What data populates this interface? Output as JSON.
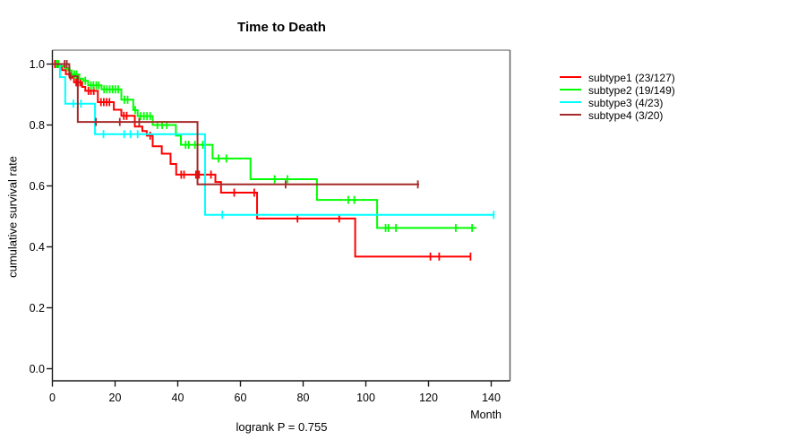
{
  "title": "Time to Death",
  "footer": "logrank P = 0.755",
  "axes": {
    "x": {
      "label": "Month",
      "ticks": [
        "0",
        "20",
        "40",
        "60",
        "80",
        "100",
        "120",
        "140"
      ],
      "min": 0,
      "max": 140
    },
    "y": {
      "label": "cumulative survival rate",
      "ticks": [
        "0.0",
        "0.2",
        "0.4",
        "0.6",
        "0.8",
        "1.0"
      ],
      "min": 0,
      "max": 1
    }
  },
  "legend": {
    "position": "right",
    "items": [
      {
        "label": "subtype1 (23/127)",
        "color": "#ff0000"
      },
      {
        "label": "subtype2 (19/149)",
        "color": "#00ff00"
      },
      {
        "label": "subtype3 (4/23)",
        "color": "#00ffff"
      },
      {
        "label": "subtype4 (3/20)",
        "color": "#a52a2a"
      }
    ]
  },
  "chart_data": {
    "type": "line",
    "variant": "kaplan-meier-step",
    "title": "Time to Death",
    "xlabel": "Month",
    "ylabel": "cumulative survival rate",
    "annotation": "logrank P = 0.755",
    "xlim": [
      0,
      140
    ],
    "ylim": [
      0,
      1
    ],
    "grid": false,
    "legend_position": "right",
    "series": [
      {
        "name": "subtype1 (23/127)",
        "color": "#ff0000",
        "events_total": "23/127",
        "steps": [
          [
            0,
            1.0
          ],
          [
            1.9,
            0.99
          ],
          [
            3.1,
            0.98
          ],
          [
            4.3,
            0.967
          ],
          [
            5.5,
            0.955
          ],
          [
            6.9,
            0.94
          ],
          [
            9.5,
            0.925
          ],
          [
            10.5,
            0.912
          ],
          [
            14.5,
            0.875
          ],
          [
            19.6,
            0.85
          ],
          [
            22,
            0.83
          ],
          [
            26.3,
            0.795
          ],
          [
            28.7,
            0.78
          ],
          [
            30.1,
            0.765
          ],
          [
            32,
            0.73
          ],
          [
            34.9,
            0.706
          ],
          [
            37.7,
            0.672
          ],
          [
            39.5,
            0.637
          ],
          [
            52,
            0.613
          ],
          [
            53.8,
            0.578
          ],
          [
            65.3,
            0.493
          ],
          [
            96.6,
            0.368
          ]
        ],
        "end": 133.5,
        "censors": [
          [
            0.8,
            1.0
          ],
          [
            1.4,
            1.0
          ],
          [
            2.4,
            0.99
          ],
          [
            7.6,
            0.94
          ],
          [
            8.3,
            0.94
          ],
          [
            9.0,
            0.94
          ],
          [
            11.5,
            0.912
          ],
          [
            12.3,
            0.912
          ],
          [
            13.2,
            0.912
          ],
          [
            15.5,
            0.875
          ],
          [
            16.4,
            0.875
          ],
          [
            17.3,
            0.875
          ],
          [
            18.2,
            0.875
          ],
          [
            22.8,
            0.83
          ],
          [
            23.7,
            0.83
          ],
          [
            31.2,
            0.765
          ],
          [
            41.1,
            0.637
          ],
          [
            42.0,
            0.637
          ],
          [
            45.8,
            0.637
          ],
          [
            46.8,
            0.637
          ],
          [
            50.6,
            0.637
          ],
          [
            58.0,
            0.578
          ],
          [
            64.4,
            0.578
          ],
          [
            78.2,
            0.493
          ],
          [
            91.5,
            0.493
          ],
          [
            120.6,
            0.368
          ],
          [
            123.4,
            0.368
          ],
          [
            133.4,
            0.368
          ]
        ]
      },
      {
        "name": "subtype2 (19/149)",
        "color": "#00ff00",
        "events_total": "19/149",
        "steps": [
          [
            0,
            1.0
          ],
          [
            2.7,
            0.993
          ],
          [
            4.0,
            0.986
          ],
          [
            4.9,
            0.979
          ],
          [
            6.2,
            0.966
          ],
          [
            8.6,
            0.952
          ],
          [
            9.8,
            0.945
          ],
          [
            11.4,
            0.93
          ],
          [
            15.7,
            0.917
          ],
          [
            22,
            0.883
          ],
          [
            25.8,
            0.849
          ],
          [
            27.2,
            0.829
          ],
          [
            32,
            0.8
          ],
          [
            39.4,
            0.765
          ],
          [
            41,
            0.735
          ],
          [
            51.1,
            0.69
          ],
          [
            63.2,
            0.622
          ],
          [
            84.4,
            0.554
          ],
          [
            103.6,
            0.462
          ]
        ],
        "end": 135.3,
        "censors": [
          [
            1.3,
            1.0
          ],
          [
            2.0,
            1.0
          ],
          [
            5.5,
            0.979
          ],
          [
            7.0,
            0.966
          ],
          [
            7.7,
            0.966
          ],
          [
            10.5,
            0.945
          ],
          [
            12.3,
            0.93
          ],
          [
            13.1,
            0.93
          ],
          [
            14.0,
            0.93
          ],
          [
            14.8,
            0.93
          ],
          [
            16.5,
            0.917
          ],
          [
            17.4,
            0.917
          ],
          [
            18.3,
            0.917
          ],
          [
            19.2,
            0.917
          ],
          [
            20.1,
            0.917
          ],
          [
            21.0,
            0.917
          ],
          [
            23.0,
            0.883
          ],
          [
            24.0,
            0.883
          ],
          [
            26.4,
            0.849
          ],
          [
            28.2,
            0.829
          ],
          [
            29.2,
            0.829
          ],
          [
            30.2,
            0.829
          ],
          [
            31.2,
            0.829
          ],
          [
            33.5,
            0.8
          ],
          [
            35.0,
            0.8
          ],
          [
            36.5,
            0.8
          ],
          [
            42.5,
            0.735
          ],
          [
            43.5,
            0.735
          ],
          [
            45.5,
            0.735
          ],
          [
            48.0,
            0.735
          ],
          [
            53.0,
            0.69
          ],
          [
            55.5,
            0.69
          ],
          [
            70.9,
            0.622
          ],
          [
            75.0,
            0.622
          ],
          [
            94.4,
            0.554
          ],
          [
            96.3,
            0.554
          ],
          [
            106.3,
            0.462
          ],
          [
            107.2,
            0.462
          ],
          [
            109.6,
            0.462
          ],
          [
            128.7,
            0.462
          ],
          [
            133.9,
            0.462
          ]
        ]
      },
      {
        "name": "subtype3 (4/23)",
        "color": "#00ffff",
        "events_total": "4/23",
        "steps": [
          [
            0,
            1.0
          ],
          [
            2.4,
            0.957
          ],
          [
            4.1,
            0.87
          ],
          [
            13.6,
            0.77
          ],
          [
            48.7,
            0.505
          ]
        ],
        "end": 140.8,
        "censors": [
          [
            6.7,
            0.87
          ],
          [
            9.1,
            0.87
          ],
          [
            16.3,
            0.77
          ],
          [
            22.9,
            0.77
          ],
          [
            24.9,
            0.77
          ],
          [
            27.2,
            0.77
          ],
          [
            54.2,
            0.505
          ],
          [
            140.8,
            0.505
          ]
        ]
      },
      {
        "name": "subtype4 (3/20)",
        "color": "#a52a2a",
        "events_total": "3/20",
        "steps": [
          [
            0,
            1.0
          ],
          [
            5.4,
            0.96
          ],
          [
            8.1,
            0.81
          ],
          [
            46.3,
            0.605
          ]
        ],
        "end": 117.0,
        "censors": [
          [
            3.9,
            1.0
          ],
          [
            4.6,
            1.0
          ],
          [
            5.8,
            0.96
          ],
          [
            13.9,
            0.81
          ],
          [
            21.5,
            0.81
          ],
          [
            27.7,
            0.81
          ],
          [
            74.4,
            0.605
          ],
          [
            116.6,
            0.605
          ]
        ]
      }
    ]
  }
}
